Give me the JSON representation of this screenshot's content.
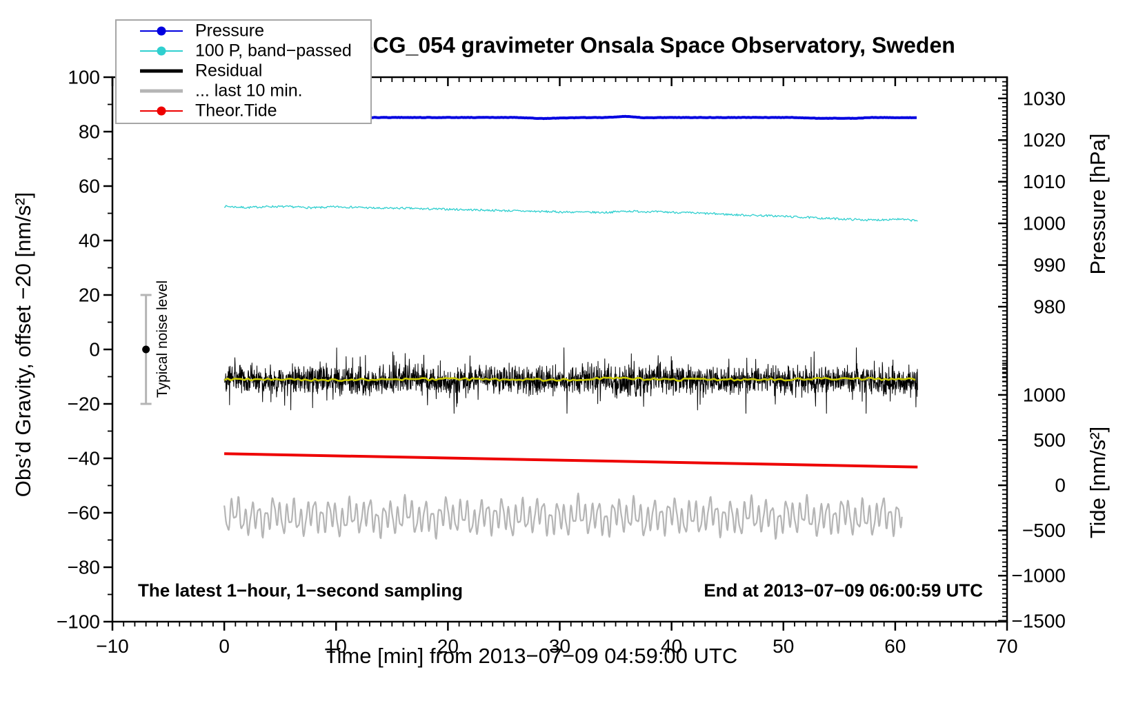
{
  "chart_data": {
    "type": "line",
    "title": "SCG_054 gravimeter Onsala Space Observatory, Sweden",
    "xlabel": "Time [min] from 2013−07−09 04:59:00 UTC",
    "ylabel_left": "Obs’d Gravity, offset −20 [nm/s²]",
    "ylabel_right_pressure": "Pressure [hPa]",
    "ylabel_right_tide": "Tide [nm/s²]",
    "annotations": {
      "sampling_note": "The latest 1−hour, 1−second sampling",
      "end_time_note": "End at 2013−07−09 06:00:59 UTC",
      "noise_label": "Typical noise level"
    },
    "x_axis": {
      "range": [
        -10,
        70
      ],
      "major_tick_values": [
        -10,
        0,
        10,
        20,
        30,
        40,
        50,
        60,
        70
      ],
      "tick_labels": [
        "−10",
        "0",
        "10",
        "20",
        "30",
        "40",
        "50",
        "60",
        "70"
      ],
      "minor_step": 1
    },
    "y_left_axis": {
      "range": [
        -100,
        100
      ],
      "major_tick_values": [
        100,
        80,
        60,
        40,
        20,
        0,
        -20,
        -40,
        -60,
        -80,
        -100
      ],
      "tick_labels": [
        "100",
        "80",
        "60",
        "40",
        "20",
        "0",
        "−20",
        "−40",
        "−60",
        "−80",
        "−100"
      ],
      "minor_step": 10
    },
    "pressure_axis": {
      "tick_values": [
        1030,
        1020,
        1010,
        1000,
        990,
        980
      ],
      "tick_labels": [
        "1030",
        "1020",
        "1010",
        "1000",
        "990",
        "980"
      ],
      "minor_step_hpa": 1,
      "left_units_per_hpa": 1.53,
      "anchor": {
        "pressure_hpa": 1030,
        "left_units": 92.2
      },
      "minor_range": [
        1034,
        962
      ]
    },
    "tide_axis": {
      "tick_values": [
        1000,
        500,
        0,
        -500,
        -1000,
        -1500
      ],
      "tick_labels": [
        "1000",
        "500",
        "0",
        "−500",
        "−1000",
        "−1500"
      ],
      "minor_step": 50,
      "left_units_per_unit": 0.0332,
      "anchor": {
        "tide_nms2": 1000,
        "left_units": -16.7
      },
      "minor_range": [
        1350,
        -1500
      ]
    },
    "noise_bar": {
      "t_min": -7,
      "center_value": 0,
      "half_range": 20,
      "bar_color": "#b5b5b5",
      "dot_color": "#000000"
    },
    "legend": [
      {
        "label": "Pressure",
        "color": "#0000e0",
        "line_width": 2,
        "dot": true
      },
      {
        "label": "100 P, band−passed",
        "color": "#2fcfcf",
        "line_width": 2,
        "dot": true
      },
      {
        "label": "Residual",
        "color": "#000000",
        "line_width": 5,
        "dot": false
      },
      {
        "label": "... last 10 min.",
        "color": "#b5b5b5",
        "line_width": 5,
        "dot": false
      },
      {
        "label": "Theor.Tide",
        "color": "#ee0000",
        "line_width": 2,
        "dot": true
      }
    ],
    "series": [
      {
        "id": "last_10_min",
        "legend_label": "... last 10 min.",
        "type": "oscillation",
        "color": "#b5b5b5",
        "width": 2.2,
        "seed": 11,
        "t_start": 0,
        "t_end": 60.6,
        "step": 0.05,
        "center": -61.5,
        "components": [
          [
            4.3,
            0.62,
            1.3
          ],
          [
            2.1,
            1.7,
            4.0
          ],
          [
            1.5,
            0.33,
            2.2
          ],
          [
            0.8,
            3.9,
            0.5
          ]
        ]
      },
      {
        "id": "theor_tide",
        "legend_label": "Theor.Tide",
        "type": "segments",
        "color": "#ee0000",
        "width": 4,
        "points": [
          [
            0,
            -38.3
          ],
          [
            62,
            -43.2
          ]
        ],
        "tide_axis_values_nms2": [
          350,
          200
        ]
      },
      {
        "id": "band_passed",
        "legend_label": "100 P, band−passed",
        "type": "waypoints_noise",
        "color": "#2fcfcf",
        "width": 1.3,
        "seed": 7,
        "step": 0.08,
        "noise_half_range": 0.38,
        "waypoints": [
          [
            0,
            52.6
          ],
          [
            2,
            52.1
          ],
          [
            4,
            52.5
          ],
          [
            6,
            52.4
          ],
          [
            8,
            52.0
          ],
          [
            10,
            52.4
          ],
          [
            12,
            52.2
          ],
          [
            14,
            51.8
          ],
          [
            16,
            51.9
          ],
          [
            18,
            51.6
          ],
          [
            20,
            51.5
          ],
          [
            22,
            51.3
          ],
          [
            24,
            51.1
          ],
          [
            26,
            50.9
          ],
          [
            28,
            50.7
          ],
          [
            30,
            50.5
          ],
          [
            32,
            50.4
          ],
          [
            34,
            50.3
          ],
          [
            36,
            50.8
          ],
          [
            38,
            50.6
          ],
          [
            40,
            50.4
          ],
          [
            42,
            50.1
          ],
          [
            44,
            49.8
          ],
          [
            46,
            49.4
          ],
          [
            48,
            49.2
          ],
          [
            50,
            48.9
          ],
          [
            52,
            48.5
          ],
          [
            54,
            48.1
          ],
          [
            56,
            47.8
          ],
          [
            58,
            47.5
          ],
          [
            60,
            47.9
          ],
          [
            62,
            47.3
          ]
        ]
      },
      {
        "id": "pressure",
        "legend_label": "Pressure",
        "type": "waypoints_noise",
        "color": "#0000e0",
        "width": 4,
        "seed": 3,
        "step": 0.12,
        "noise_half_range": 0.07,
        "pressure_axis_value_hpa": 1025.2,
        "waypoints": [
          [
            0,
            85.2
          ],
          [
            26,
            85.2
          ],
          [
            28.5,
            84.8
          ],
          [
            31,
            85.1
          ],
          [
            34,
            85.2
          ],
          [
            35.8,
            85.6
          ],
          [
            37.5,
            85.1
          ],
          [
            40,
            85.2
          ],
          [
            51,
            85.2
          ],
          [
            53,
            84.9
          ],
          [
            56.5,
            84.9
          ],
          [
            58,
            85.2
          ],
          [
            62,
            85.1
          ]
        ]
      },
      {
        "id": "residual",
        "legend_label": "Residual",
        "type": "noisy_band",
        "color": "#000000",
        "width": 1,
        "seed": 42,
        "t_start": 0,
        "t_end": 62,
        "step": 0.025,
        "mean": -11.3,
        "noise_sigma": 2.6,
        "spike_prob": 0.05,
        "spike_min": 3,
        "spike_max": 9.5,
        "clamp": [
          -23.5,
          0.6
        ]
      },
      {
        "id": "residual_smooth",
        "type": "waypoints_noise",
        "color": "#c9c900",
        "width": 2.6,
        "seed": 9,
        "step": 0.3,
        "noise_half_range": 0.45,
        "waypoints": [
          [
            0,
            -11.0
          ],
          [
            10,
            -11.2
          ],
          [
            20,
            -10.9
          ],
          [
            30,
            -11.2
          ],
          [
            34,
            -10.6
          ],
          [
            40,
            -11.1
          ],
          [
            50,
            -11.0
          ],
          [
            55,
            -10.7
          ],
          [
            62,
            -11.0
          ]
        ]
      }
    ]
  }
}
